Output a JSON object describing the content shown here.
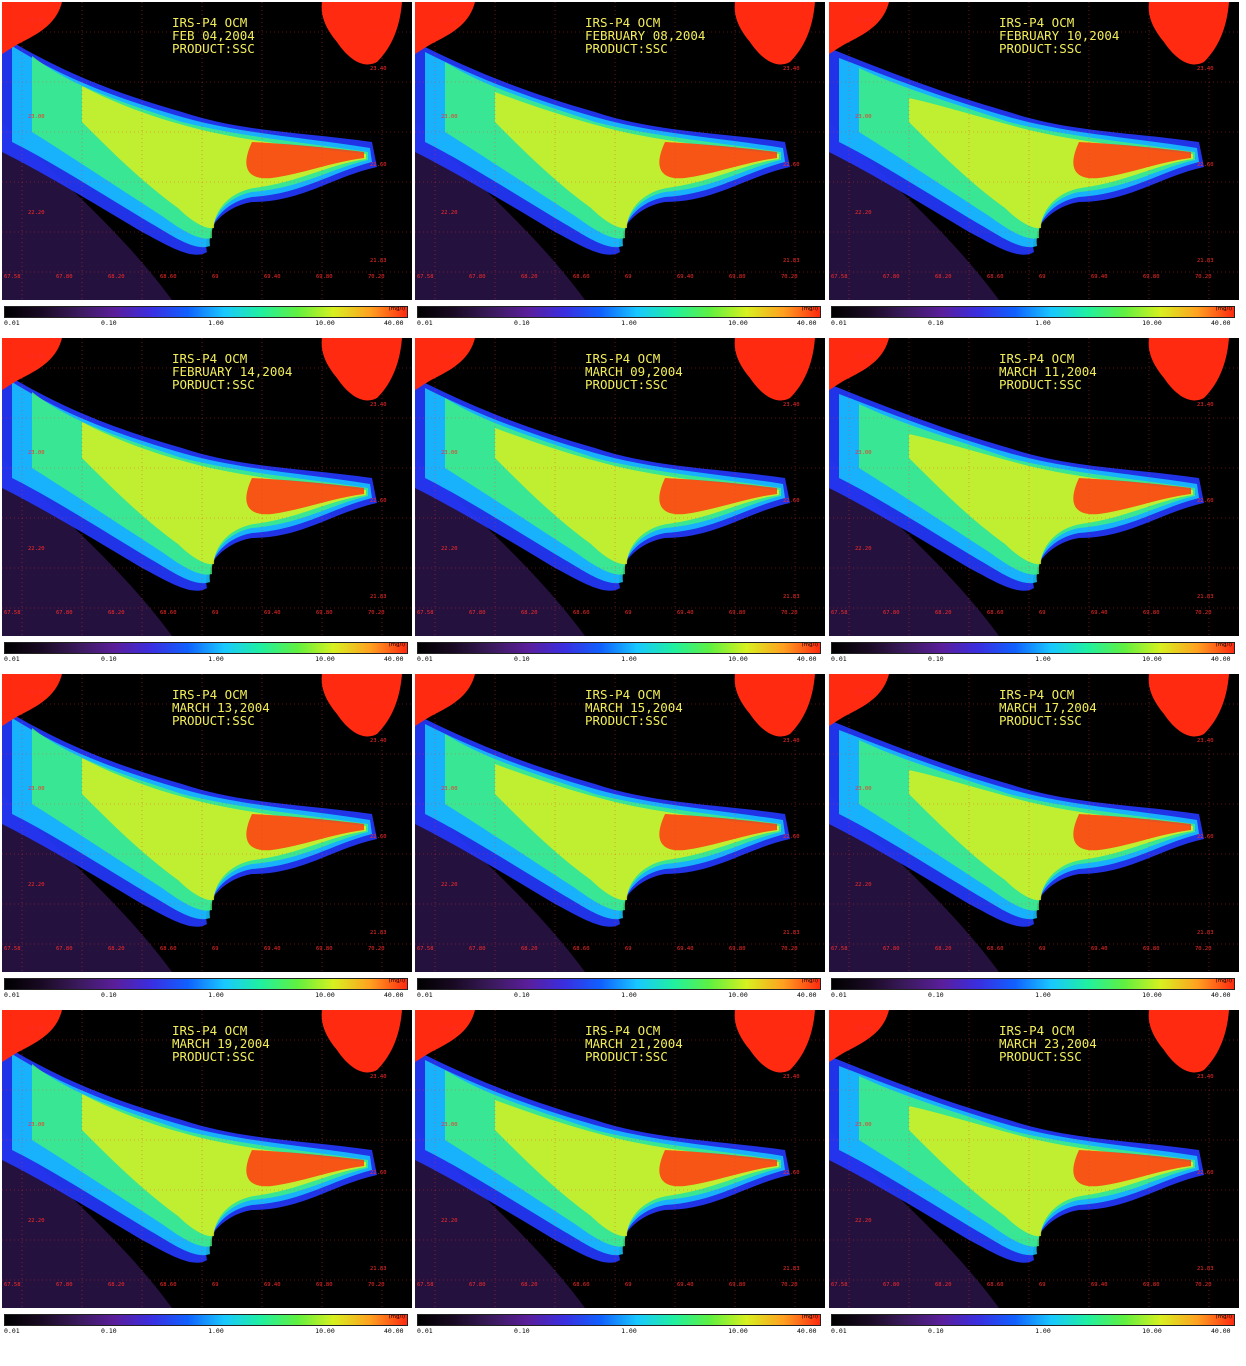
{
  "panels": [
    {
      "sensor": "IRS-P4 OCM",
      "date": "FEB 04,2004",
      "product": "PRODUCT:SSC"
    },
    {
      "sensor": "IRS-P4 OCM",
      "date": "FEBRUARY 08,2004",
      "product": "PRODUCT:SSC"
    },
    {
      "sensor": "IRS-P4 OCM",
      "date": "FEBRUARY 10,2004",
      "product": "PRODUCT:SSC"
    },
    {
      "sensor": "IRS-P4 OCM",
      "date": "FEBRUARY 14,2004",
      "product": "PORDUCT:SSC"
    },
    {
      "sensor": "IRS-P4 OCM",
      "date": "MARCH 09,2004",
      "product": "PRODUCT:SSC"
    },
    {
      "sensor": "IRS-P4 OCM",
      "date": "MARCH 11,2004",
      "product": "PRODUCT:SSC"
    },
    {
      "sensor": "IRS-P4 OCM",
      "date": "MARCH 13,2004",
      "product": "PRODUCT:SSC"
    },
    {
      "sensor": "IRS-P4 OCM",
      "date": "MARCH 15,2004",
      "product": "PRODUCT:SSC"
    },
    {
      "sensor": "IRS-P4 OCM",
      "date": "MARCH 17,2004",
      "product": "PRODUCT:SSC"
    },
    {
      "sensor": "IRS-P4 OCM",
      "date": "MARCH 19,2004",
      "product": "PRODUCT:SSC"
    },
    {
      "sensor": "IRS-P4 OCM",
      "date": "MARCH 21,2004",
      "product": "PRODUCT:SSC"
    },
    {
      "sensor": "IRS-P4 OCM",
      "date": "MARCH 23,2004",
      "product": "PRODUCT:SSC"
    }
  ],
  "colorbar": {
    "unit": "(mg/l)",
    "ticks": [
      "0.01",
      "0.10",
      "1.00",
      "10.00",
      "40.00"
    ],
    "gradient": [
      "#000000",
      "#1a0a24",
      "#3a1a5c",
      "#5a1e9a",
      "#3a2ee0",
      "#1060ff",
      "#18c8ff",
      "#20f0a0",
      "#60f040",
      "#d8f020",
      "#ffa020",
      "#ff2a10"
    ]
  },
  "map_grid": {
    "lon_labels": [
      "67.58",
      "67.80",
      "68.20",
      "68.60",
      "69",
      "69.40",
      "69.80",
      "70.20"
    ],
    "lat_labels": [
      "23.80",
      "23.40",
      "23.00",
      "22.60",
      "22.20",
      "21.83"
    ]
  }
}
